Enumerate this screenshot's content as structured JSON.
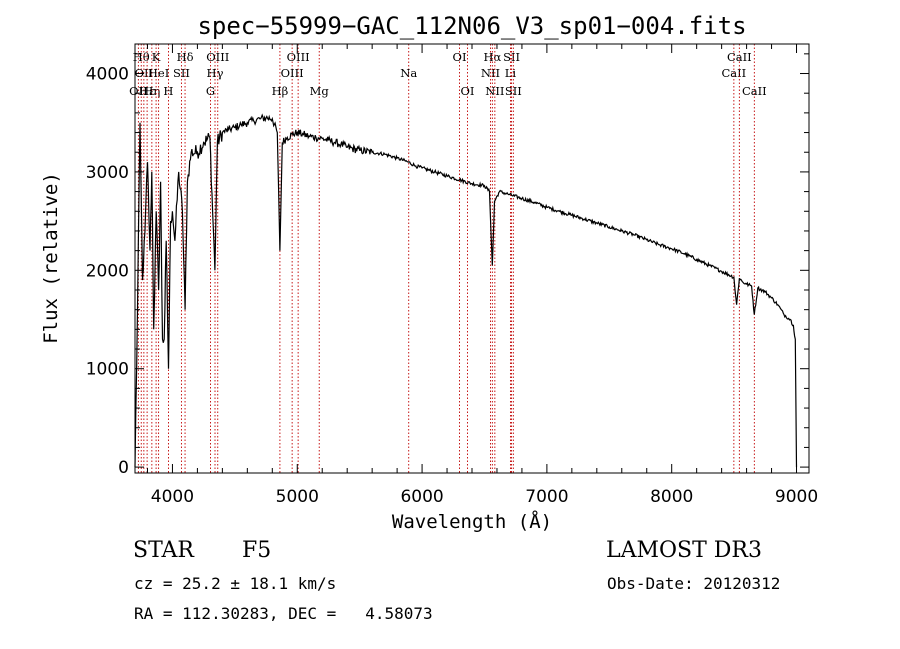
{
  "chart_data": {
    "type": "line",
    "title": "spec−55999−GAC_112N06_V3_sp01−004.fits",
    "xlabel": "Wavelength (Å)",
    "ylabel": "Flux (relative)",
    "xlim": [
      3700,
      9100
    ],
    "ylim": [
      -60,
      4300
    ],
    "x_ticks": [
      4000,
      5000,
      6000,
      7000,
      8000,
      9000
    ],
    "y_ticks": [
      0,
      1000,
      2000,
      3000,
      4000
    ],
    "grid": false,
    "series": [
      {
        "name": "spectrum",
        "color": "#000000",
        "x": [
          3700,
          3720,
          3740,
          3760,
          3780,
          3800,
          3820,
          3835,
          3850,
          3870,
          3889,
          3905,
          3920,
          3934,
          3950,
          3968,
          3985,
          4000,
          4020,
          4050,
          4080,
          4101,
          4120,
          4150,
          4200,
          4250,
          4300,
          4340,
          4360,
          4400,
          4450,
          4500,
          4550,
          4600,
          4650,
          4700,
          4750,
          4800,
          4840,
          4861,
          4880,
          4920,
          4960,
          5000,
          5050,
          5100,
          5150,
          5200,
          5250,
          5300,
          5350,
          5400,
          5500,
          5600,
          5700,
          5800,
          5890,
          5950,
          6000,
          6100,
          6200,
          6300,
          6400,
          6500,
          6540,
          6563,
          6580,
          6620,
          6700,
          6800,
          6900,
          7000,
          7100,
          7200,
          7300,
          7400,
          7500,
          7600,
          7700,
          7800,
          7900,
          8000,
          8100,
          8200,
          8300,
          8400,
          8498,
          8520,
          8542,
          8570,
          8600,
          8640,
          8662,
          8690,
          8750,
          8800,
          8850,
          8900,
          8950,
          8975,
          8990,
          9000
        ],
        "y": [
          0,
          1600,
          3500,
          1900,
          2400,
          3100,
          2200,
          3000,
          1400,
          2600,
          1800,
          2900,
          1300,
          1300,
          2300,
          1000,
          2500,
          2600,
          2300,
          3000,
          2600,
          1600,
          2900,
          3200,
          3200,
          3300,
          3350,
          2000,
          3300,
          3400,
          3430,
          3450,
          3480,
          3500,
          3520,
          3540,
          3550,
          3540,
          3400,
          2200,
          3300,
          3350,
          3380,
          3400,
          3380,
          3360,
          3350,
          3340,
          3320,
          3300,
          3280,
          3250,
          3220,
          3200,
          3180,
          3140,
          3100,
          3060,
          3040,
          3000,
          2960,
          2920,
          2880,
          2860,
          2800,
          2050,
          2700,
          2800,
          2770,
          2730,
          2690,
          2640,
          2600,
          2560,
          2520,
          2480,
          2440,
          2400,
          2360,
          2310,
          2260,
          2220,
          2170,
          2110,
          2050,
          1990,
          1930,
          1650,
          1920,
          1880,
          1860,
          1840,
          1550,
          1820,
          1780,
          1720,
          1650,
          1550,
          1500,
          1440,
          1300,
          0
        ]
      }
    ],
    "line_markers": [
      {
        "x": 3727,
        "label": "OII",
        "row": 3
      },
      {
        "x": 3750,
        "label": "Hθ",
        "row": 1
      },
      {
        "x": 3771,
        "label": "OII",
        "row": 2
      },
      {
        "x": 3797,
        "label": "Hε",
        "row": 3
      },
      {
        "x": 3835,
        "label": "Hη",
        "row": 3
      },
      {
        "x": 3869,
        "label": "K",
        "row": 1
      },
      {
        "x": 3889,
        "label": "HeI",
        "row": 2
      },
      {
        "x": 3968,
        "label": "H",
        "row": 3
      },
      {
        "x": 4072,
        "label": "SII",
        "row": 2
      },
      {
        "x": 4101,
        "label": "Hδ",
        "row": 1
      },
      {
        "x": 4305,
        "label": "G",
        "row": 3
      },
      {
        "x": 4341,
        "label": "Hγ",
        "row": 2
      },
      {
        "x": 4363,
        "label": "OIII",
        "row": 1
      },
      {
        "x": 4861,
        "label": "Hβ",
        "row": 3
      },
      {
        "x": 4959,
        "label": "OIII",
        "row": 2
      },
      {
        "x": 5007,
        "label": "OIII",
        "row": 1
      },
      {
        "x": 5176,
        "label": "Mg",
        "row": 3
      },
      {
        "x": 5893,
        "label": "Na",
        "row": 2
      },
      {
        "x": 6300,
        "label": "OI",
        "row": 1
      },
      {
        "x": 6364,
        "label": "OI",
        "row": 3
      },
      {
        "x": 6548,
        "label": "NII",
        "row": 2
      },
      {
        "x": 6563,
        "label": "Hα",
        "row": 1
      },
      {
        "x": 6583,
        "label": "NII",
        "row": 3
      },
      {
        "x": 6708,
        "label": "Li",
        "row": 2
      },
      {
        "x": 6717,
        "label": "SII",
        "row": 1
      },
      {
        "x": 6731,
        "label": "SII",
        "row": 3
      },
      {
        "x": 8498,
        "label": "CaII",
        "row": 2
      },
      {
        "x": 8542,
        "label": "CaII",
        "row": 1
      },
      {
        "x": 8662,
        "label": "CaII",
        "row": 3
      }
    ],
    "marker_color": "#c00000"
  },
  "info": {
    "class_label": "STAR",
    "subclass": "F5",
    "survey": "LAMOST DR3",
    "redshift_line": "cz = 25.2 ± 18.1 km/s",
    "obs_date_line": "Obs-Date: 20120312",
    "coords_line": "RA = 112.30283, DEC =   4.58073"
  }
}
